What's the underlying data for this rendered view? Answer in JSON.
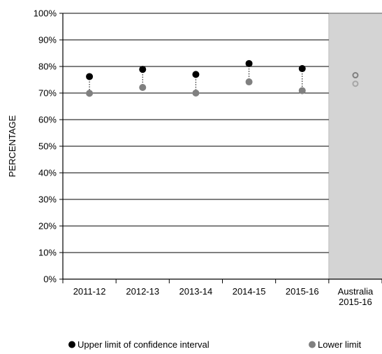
{
  "chart_data": {
    "type": "scatter",
    "ylabel": "PERCENTAGE",
    "ylim": [
      0,
      100
    ],
    "y_tick_step": 10,
    "y_tick_suffix": "%",
    "categories": [
      "2011-12",
      "2012-13",
      "2013-14",
      "2014-15",
      "2015-16"
    ],
    "series": [
      {
        "name": "Upper limit of confidence interval",
        "values": [
          76.2,
          78.9,
          77.0,
          81.1,
          79.2
        ],
        "color": "#000000"
      },
      {
        "name": "Lower limit",
        "values": [
          69.9,
          72.1,
          70.0,
          74.2,
          70.9
        ],
        "color": "#808080"
      }
    ],
    "reference": {
      "label_lines": [
        "Australia",
        "2015-16"
      ],
      "upper": 76.7,
      "lower": 73.5,
      "shade_color": "#d4d4d4",
      "upper_color": "#808080",
      "lower_color": "#a6a6a6"
    },
    "grid": true,
    "legend_position": "bottom"
  }
}
